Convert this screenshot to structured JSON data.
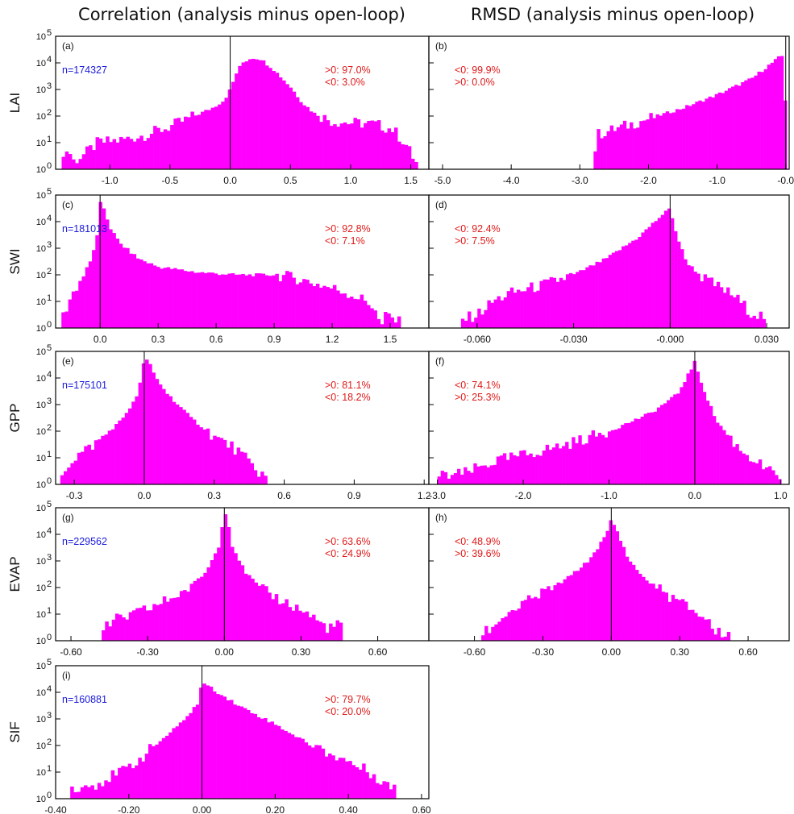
{
  "column_titles": [
    "Correlation (analysis minus open-loop)",
    "RMSD (analysis minus open-loop)"
  ],
  "colors": {
    "bar": "#ff00ff",
    "stat_text": "#e01a1a",
    "n_text": "#1a1adb",
    "axis": "#000000"
  },
  "chart_data": [
    {
      "type": "bar",
      "panel": "(a)",
      "row_label": "LAI",
      "n_label": "n=174327",
      "stats": [
        ">0: 97.0%",
        "<0:  3.0%"
      ],
      "xlim": [
        -1.45,
        1.65
      ],
      "ylim_log10": [
        0,
        5
      ],
      "zero_line": 0.0,
      "x_ticks": [
        "-1.0",
        "-0.5",
        "0.0",
        "0.5",
        "1.0",
        "1.5"
      ],
      "x_tick_values": [
        -1.0,
        -0.5,
        0.0,
        0.5,
        1.0,
        1.5
      ],
      "y_tick_labels": [
        "10",
        "10",
        "10",
        "10",
        "10",
        "10"
      ],
      "y_tick_exponents": [
        "0",
        "1",
        "2",
        "3",
        "4",
        "5"
      ],
      "y_tick_values_log10": [
        0,
        1,
        2,
        3,
        4,
        5
      ],
      "bins": [
        -1.4,
        1.55
      ],
      "profile": [
        [
          -1.4,
          0.3
        ],
        [
          -1.35,
          0.8
        ],
        [
          -1.3,
          0.3
        ],
        [
          -1.2,
          0.6
        ],
        [
          -1.1,
          1.0
        ],
        [
          -0.9,
          1.1
        ],
        [
          -0.7,
          1.3
        ],
        [
          -0.5,
          1.6
        ],
        [
          -0.3,
          2.0
        ],
        [
          -0.15,
          2.3
        ],
        [
          -0.05,
          2.6
        ],
        [
          0.0,
          3.0
        ],
        [
          0.05,
          3.6
        ],
        [
          0.1,
          4.0
        ],
        [
          0.18,
          4.2
        ],
        [
          0.25,
          4.15
        ],
        [
          0.35,
          3.8
        ],
        [
          0.5,
          3.1
        ],
        [
          0.6,
          2.5
        ],
        [
          0.7,
          2.1
        ],
        [
          0.85,
          1.8
        ],
        [
          1.0,
          1.75
        ],
        [
          1.2,
          1.7
        ],
        [
          1.35,
          1.5
        ],
        [
          1.45,
          1.0
        ],
        [
          1.55,
          0.2
        ]
      ]
    },
    {
      "type": "bar",
      "panel": "(b)",
      "row_label": "",
      "n_label": "",
      "stats": [
        "<0: 99.9%",
        ">0:  0.0%"
      ],
      "xlim": [
        -5.2,
        0.05
      ],
      "ylim_log10": [
        0,
        5
      ],
      "zero_line": 0.0,
      "x_ticks": [
        "-5.0",
        "-4.0",
        "-3.0",
        "-2.0",
        "-1.0",
        "-0.0"
      ],
      "x_tick_values": [
        -5.0,
        -4.0,
        -3.0,
        -2.0,
        -1.0,
        0.0
      ],
      "y_tick_labels": [],
      "y_tick_exponents": [],
      "y_tick_values_log10": [],
      "bins": [
        -2.8,
        0.0
      ],
      "profile": [
        [
          -2.8,
          0.3
        ],
        [
          -2.75,
          1.3
        ],
        [
          -2.5,
          1.5
        ],
        [
          -2.0,
          1.9
        ],
        [
          -1.5,
          2.3
        ],
        [
          -1.0,
          2.8
        ],
        [
          -0.5,
          3.4
        ],
        [
          -0.1,
          4.2
        ],
        [
          -0.02,
          4.3
        ],
        [
          0.0,
          1.5
        ]
      ]
    },
    {
      "type": "bar",
      "panel": "(c)",
      "row_label": "SWI",
      "n_label": "n=181013",
      "stats": [
        ">0: 92.8%",
        "<0:  7.1%"
      ],
      "xlim": [
        -0.23,
        1.7
      ],
      "ylim_log10": [
        0,
        5
      ],
      "zero_line": 0.0,
      "x_ticks": [
        "0.0",
        "0.3",
        "0.6",
        "0.9",
        "1.2",
        "1.5"
      ],
      "x_tick_values": [
        0.0,
        0.3,
        0.6,
        0.9,
        1.2,
        1.5
      ],
      "y_tick_labels": [
        "10",
        "10",
        "10",
        "10",
        "10",
        "10"
      ],
      "y_tick_exponents": [
        "0",
        "1",
        "2",
        "3",
        "4",
        "5"
      ],
      "y_tick_values_log10": [
        0,
        1,
        2,
        3,
        4,
        5
      ],
      "bins": [
        -0.2,
        1.6
      ],
      "profile": [
        [
          -0.2,
          0.3
        ],
        [
          -0.15,
          1.2
        ],
        [
          -0.1,
          1.8
        ],
        [
          -0.05,
          2.5
        ],
        [
          -0.01,
          3.6
        ],
        [
          0.0,
          4.7
        ],
        [
          0.02,
          4.5
        ],
        [
          0.05,
          3.8
        ],
        [
          0.1,
          3.2
        ],
        [
          0.2,
          2.6
        ],
        [
          0.3,
          2.3
        ],
        [
          0.5,
          2.1
        ],
        [
          0.7,
          2.0
        ],
        [
          0.9,
          2.0
        ],
        [
          1.0,
          1.9
        ],
        [
          1.1,
          1.7
        ],
        [
          1.25,
          1.4
        ],
        [
          1.35,
          1.1
        ],
        [
          1.42,
          0.8
        ],
        [
          1.45,
          0.0
        ],
        [
          1.48,
          0.5
        ],
        [
          1.55,
          0.2
        ]
      ]
    },
    {
      "type": "bar",
      "panel": "(d)",
      "row_label": "",
      "n_label": "",
      "stats": [
        "<0: 92.4%",
        ">0:  7.5%"
      ],
      "xlim": [
        -0.075,
        0.037
      ],
      "ylim_log10": [
        0,
        5
      ],
      "zero_line": 0.0,
      "x_ticks": [
        "-0.060",
        "-0.030",
        "-0.000",
        "0.030"
      ],
      "x_tick_values": [
        -0.06,
        -0.03,
        0.0,
        0.03
      ],
      "y_tick_labels": [],
      "y_tick_exponents": [],
      "y_tick_values_log10": [],
      "bins": [
        -0.065,
        0.032
      ],
      "profile": [
        [
          -0.065,
          0.3
        ],
        [
          -0.06,
          0.5
        ],
        [
          -0.055,
          1.0
        ],
        [
          -0.05,
          1.3
        ],
        [
          -0.04,
          1.6
        ],
        [
          -0.03,
          2.0
        ],
        [
          -0.02,
          2.6
        ],
        [
          -0.01,
          3.4
        ],
        [
          -0.003,
          4.2
        ],
        [
          0.0,
          4.5
        ],
        [
          0.002,
          3.5
        ],
        [
          0.005,
          2.5
        ],
        [
          0.01,
          1.9
        ],
        [
          0.02,
          1.2
        ],
        [
          0.025,
          0.6
        ],
        [
          0.03,
          0.4
        ]
      ]
    },
    {
      "type": "bar",
      "panel": "(e)",
      "row_label": "GPP",
      "n_label": "n=175101",
      "stats": [
        ">0: 81.1%",
        "<0: 18.2%"
      ],
      "xlim": [
        -0.38,
        1.22
      ],
      "ylim_log10": [
        0,
        5
      ],
      "zero_line": 0.0,
      "x_ticks": [
        "-0.3",
        "0.0",
        "0.3",
        "0.6",
        "0.9",
        "1.2"
      ],
      "x_tick_values": [
        -0.3,
        0.0,
        0.3,
        0.6,
        0.9,
        1.2
      ],
      "y_tick_labels": [
        "10",
        "10",
        "10",
        "10",
        "10",
        "10"
      ],
      "y_tick_exponents": [
        "0",
        "1",
        "2",
        "3",
        "4",
        "5"
      ],
      "y_tick_values_log10": [
        0,
        1,
        2,
        3,
        4,
        5
      ],
      "bins": [
        -0.36,
        0.52
      ],
      "profile": [
        [
          -0.36,
          0.4
        ],
        [
          -0.3,
          1.0
        ],
        [
          -0.2,
          1.6
        ],
        [
          -0.1,
          2.4
        ],
        [
          -0.03,
          3.3
        ],
        [
          0.0,
          4.7
        ],
        [
          0.02,
          4.6
        ],
        [
          0.05,
          4.0
        ],
        [
          0.1,
          3.4
        ],
        [
          0.2,
          2.5
        ],
        [
          0.3,
          1.8
        ],
        [
          0.38,
          1.4
        ],
        [
          0.42,
          1.1
        ],
        [
          0.47,
          0.6
        ],
        [
          0.52,
          0.3
        ]
      ]
    },
    {
      "type": "bar",
      "panel": "(f)",
      "row_label": "",
      "n_label": "",
      "stats": [
        "<0: 74.1%",
        ">0: 25.3%"
      ],
      "xlim": [
        -3.1,
        1.1
      ],
      "ylim_log10": [
        0,
        5
      ],
      "zero_line": 0.0,
      "x_ticks": [
        "-3.0",
        "-2.0",
        "-1.0",
        "0.0",
        "1.0"
      ],
      "x_tick_values": [
        -3.0,
        -2.0,
        -1.0,
        0.0,
        1.0
      ],
      "y_tick_labels": [],
      "y_tick_exponents": [],
      "y_tick_values_log10": [],
      "bins": [
        -3.0,
        1.0
      ],
      "profile": [
        [
          -3.0,
          0.3
        ],
        [
          -2.7,
          0.4
        ],
        [
          -2.3,
          0.9
        ],
        [
          -2.0,
          1.1
        ],
        [
          -1.5,
          1.5
        ],
        [
          -1.0,
          2.0
        ],
        [
          -0.5,
          2.7
        ],
        [
          -0.2,
          3.4
        ],
        [
          0.0,
          4.6
        ],
        [
          0.1,
          3.6
        ],
        [
          0.25,
          2.4
        ],
        [
          0.5,
          1.4
        ],
        [
          0.7,
          0.9
        ],
        [
          0.9,
          0.4
        ],
        [
          1.0,
          0.3
        ]
      ]
    },
    {
      "type": "bar",
      "panel": "(g)",
      "row_label": "EVAP",
      "n_label": "n=229562",
      "stats": [
        ">0: 63.6%",
        "<0: 24.9%"
      ],
      "xlim": [
        -0.66,
        0.8
      ],
      "ylim_log10": [
        0,
        5
      ],
      "zero_line": 0.0,
      "x_ticks": [
        "-0.60",
        "-0.30",
        "0.00",
        "0.30",
        "0.60"
      ],
      "x_tick_values": [
        -0.6,
        -0.3,
        0.0,
        0.3,
        0.6
      ],
      "y_tick_labels": [
        "10",
        "10",
        "10",
        "10",
        "10",
        "10"
      ],
      "y_tick_exponents": [
        "0",
        "1",
        "2",
        "3",
        "4",
        "5"
      ],
      "y_tick_values_log10": [
        0,
        1,
        2,
        3,
        4,
        5
      ],
      "bins": [
        -0.48,
        0.47
      ],
      "profile": [
        [
          -0.48,
          0.4
        ],
        [
          -0.42,
          0.8
        ],
        [
          -0.35,
          1.0
        ],
        [
          -0.25,
          1.4
        ],
        [
          -0.15,
          1.9
        ],
        [
          -0.07,
          2.6
        ],
        [
          -0.02,
          3.6
        ],
        [
          0.0,
          4.9
        ],
        [
          0.01,
          4.7
        ],
        [
          0.03,
          3.6
        ],
        [
          0.08,
          2.6
        ],
        [
          0.15,
          1.9
        ],
        [
          0.25,
          1.4
        ],
        [
          0.33,
          1.0
        ],
        [
          0.4,
          0.5
        ],
        [
          0.46,
          0.6
        ]
      ]
    },
    {
      "type": "bar",
      "panel": "(h)",
      "row_label": "",
      "n_label": "",
      "stats": [
        "<0: 48.9%",
        ">0: 39.6%"
      ],
      "xlim": [
        -0.8,
        0.78
      ],
      "ylim_log10": [
        0,
        5
      ],
      "zero_line": 0.0,
      "x_ticks": [
        "-0.60",
        "-0.30",
        "0.00",
        "0.30",
        "0.60"
      ],
      "x_tick_values": [
        -0.6,
        -0.3,
        0.0,
        0.3,
        0.6
      ],
      "y_tick_labels": [],
      "y_tick_exponents": [],
      "y_tick_values_log10": [],
      "bins": [
        -0.57,
        0.51
      ],
      "profile": [
        [
          -0.57,
          0.3
        ],
        [
          -0.52,
          0.5
        ],
        [
          -0.48,
          0.9
        ],
        [
          -0.4,
          1.3
        ],
        [
          -0.3,
          1.8
        ],
        [
          -0.2,
          2.3
        ],
        [
          -0.1,
          3.0
        ],
        [
          -0.02,
          4.0
        ],
        [
          0.0,
          4.6
        ],
        [
          0.02,
          4.2
        ],
        [
          0.08,
          3.0
        ],
        [
          0.15,
          2.3
        ],
        [
          0.25,
          1.7
        ],
        [
          0.35,
          1.2
        ],
        [
          0.42,
          0.8
        ],
        [
          0.46,
          0.3
        ],
        [
          0.51,
          0.3
        ]
      ]
    },
    {
      "type": "bar",
      "panel": "(i)",
      "row_label": "SIF",
      "n_label": "n=160881",
      "stats": [
        ">0: 79.7%",
        "<0: 20.0%"
      ],
      "xlim": [
        -0.4,
        0.62
      ],
      "ylim_log10": [
        0,
        5
      ],
      "zero_line": 0.0,
      "x_ticks": [
        "-0.40",
        "-0.20",
        "0.00",
        "0.20",
        "0.40",
        "0.60"
      ],
      "x_tick_values": [
        -0.4,
        -0.2,
        0.0,
        0.2,
        0.4,
        0.6
      ],
      "y_tick_labels": [
        "10",
        "10",
        "10",
        "10",
        "10",
        "10"
      ],
      "y_tick_exponents": [
        "0",
        "1",
        "2",
        "3",
        "4",
        "5"
      ],
      "y_tick_values_log10": [
        0,
        1,
        2,
        3,
        4,
        5
      ],
      "bins": [
        -0.36,
        0.53
      ],
      "profile": [
        [
          -0.36,
          0.4
        ],
        [
          -0.3,
          0.5
        ],
        [
          -0.22,
          1.0
        ],
        [
          -0.17,
          1.5
        ],
        [
          -0.12,
          2.1
        ],
        [
          -0.06,
          2.8
        ],
        [
          -0.01,
          3.6
        ],
        [
          0.0,
          4.4
        ],
        [
          0.02,
          4.2
        ],
        [
          0.1,
          3.5
        ],
        [
          0.2,
          2.8
        ],
        [
          0.3,
          2.0
        ],
        [
          0.4,
          1.4
        ],
        [
          0.47,
          0.9
        ],
        [
          0.5,
          0.6
        ],
        [
          0.53,
          0.3
        ]
      ]
    }
  ]
}
